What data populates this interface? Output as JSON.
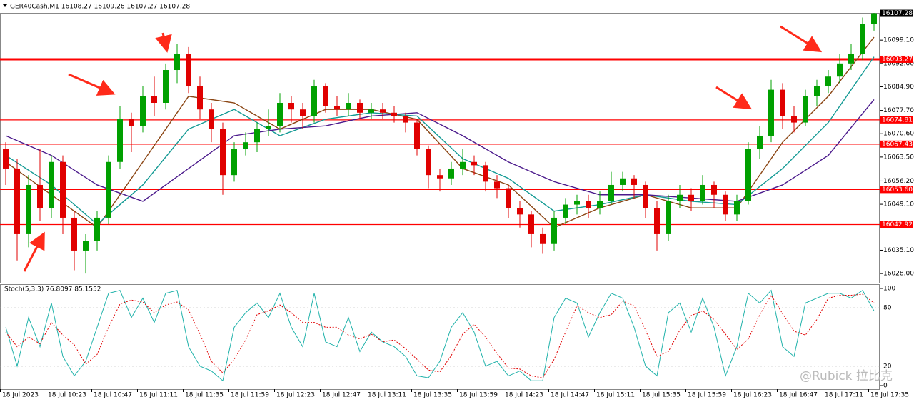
{
  "header": "GER40Cash,M1  16108.27 16109.26 16107.27 16107.28",
  "watermark": "@Rubick 拉比克",
  "chart_data": [
    {
      "type": "candlestick",
      "categories": [
        "18 Jul 2023",
        null,
        null,
        null,
        "18 Jul 10:23",
        null,
        null,
        null,
        "18 Jul 10:47",
        null,
        null,
        null,
        "18 Jul 11:11",
        null,
        null,
        null,
        "18 Jul 11:35",
        null,
        null,
        null,
        "18 Jul 11:59",
        null,
        null,
        null,
        "18 Jul 12:23",
        null,
        null,
        null,
        "18 Jul 12:47",
        null,
        null,
        null,
        "18 Jul 13:11",
        null,
        null,
        null,
        "18 Jul 13:35",
        null,
        null,
        null,
        "18 Jul 13:59",
        null,
        null,
        null,
        "18 Jul 14:23",
        null,
        null,
        null,
        "18 Jul 14:47",
        null,
        null,
        null,
        "18 Jul 15:11",
        null,
        null,
        null,
        "18 Jul 15:35",
        null,
        null,
        null,
        "18 Jul 15:59",
        null,
        null,
        null,
        "18 Jul 16:23",
        null,
        null,
        null,
        "18 Jul 16:47",
        null,
        null,
        null,
        "18 Jul 17:11",
        null,
        null,
        null,
        "18 Jul 17:35"
      ],
      "open": [
        16066,
        16060,
        16040,
        16055,
        16048,
        16062,
        16045,
        16035,
        16038,
        16045,
        16062,
        16075,
        16073,
        16082,
        16080,
        16090,
        16095,
        16085,
        16078,
        16072,
        16058,
        16066,
        16068,
        16072,
        16073,
        16080,
        16078,
        16076,
        16085,
        16079,
        16078,
        16080,
        16077,
        16078,
        16077,
        16076,
        16074,
        16066,
        16058,
        16057,
        16060,
        16062,
        16061,
        16056,
        16054,
        16048,
        16046,
        16040,
        16037,
        16045,
        16049,
        16050,
        16048,
        16050,
        16055,
        16057,
        16055,
        16048,
        16040,
        16050,
        16052,
        16050,
        16055,
        16052,
        16046,
        16050,
        16066,
        16070,
        16084,
        16076,
        16074,
        16082,
        16085,
        16088,
        16092,
        16095,
        16104
      ],
      "high": [
        16068,
        16063,
        16058,
        16066,
        16064,
        16064,
        16047,
        16040,
        16047,
        16064,
        16079,
        16077,
        16085,
        16088,
        16092,
        16098,
        16097,
        16088,
        16080,
        16074,
        16068,
        16071,
        16074,
        16078,
        16083,
        16082,
        16080,
        16087,
        16086,
        16082,
        16083,
        16081,
        16080,
        16080,
        16079,
        16077,
        16075,
        16067,
        16060,
        16062,
        16066,
        16064,
        16062,
        16058,
        16055,
        16050,
        16047,
        16042,
        16047,
        16051,
        16052,
        16052,
        16053,
        16059,
        16059,
        16058,
        16056,
        16050,
        16052,
        16055,
        16054,
        16058,
        16056,
        16053,
        16052,
        16068,
        16073,
        16087,
        16086,
        16079,
        16084,
        16087,
        16090,
        16095,
        16098,
        16106,
        16109.26
      ],
      "low": [
        16055,
        16032,
        16036,
        16044,
        16045,
        16040,
        16029,
        16028,
        16035,
        16043,
        16060,
        16065,
        16071,
        16076,
        16078,
        16086,
        16083,
        16075,
        16068,
        16052,
        16056,
        16064,
        16065,
        16070,
        16071,
        16074,
        16072,
        16074,
        16077,
        16076,
        16076,
        16075,
        16075,
        16075,
        16074,
        16071,
        16064,
        16054,
        16053,
        16055,
        16058,
        16058,
        16053,
        16051,
        16045,
        16042,
        16036,
        16034,
        16035,
        16043,
        16046,
        16045,
        16046,
        16049,
        16053,
        16051,
        16045,
        16035,
        16038,
        16048,
        16047,
        16049,
        16048,
        16044,
        16044,
        16049,
        16063,
        16068,
        16072,
        16071,
        16073,
        16079,
        16083,
        16086,
        16090,
        16093,
        16102
      ],
      "close": [
        16060,
        16040,
        16055,
        16048,
        16062,
        16045,
        16035,
        16038,
        16045,
        16062,
        16075,
        16073,
        16082,
        16080,
        16090,
        16095,
        16085,
        16078,
        16072,
        16058,
        16066,
        16068,
        16072,
        16073,
        16080,
        16078,
        16076,
        16085,
        16079,
        16078,
        16080,
        16077,
        16078,
        16077,
        16076,
        16074,
        16066,
        16058,
        16057,
        16060,
        16062,
        16061,
        16056,
        16054,
        16048,
        16046,
        16040,
        16037,
        16045,
        16049,
        16050,
        16048,
        16050,
        16055,
        16057,
        16055,
        16048,
        16040,
        16050,
        16052,
        16050,
        16055,
        16052,
        16046,
        16050,
        16066,
        16070,
        16084,
        16076,
        16074,
        16082,
        16085,
        16088,
        16092,
        16095,
        16104,
        16107.28
      ],
      "up_color": "#00a000",
      "down_color": "#e00000",
      "ylim": [
        16025.2,
        16107.4
      ],
      "yticks": [
        {
          "value": 16028,
          "label": "16028.00"
        },
        {
          "value": 16035.1,
          "label": "16035.10"
        },
        {
          "value": 16049.1,
          "label": "16049.10"
        },
        {
          "value": 16056.2,
          "label": "16056.20"
        },
        {
          "value": 16063.5,
          "label": "16063.50"
        },
        {
          "value": 16070.6,
          "label": "16070.60"
        },
        {
          "value": 16077.7,
          "label": "16077.70"
        },
        {
          "value": 16084.9,
          "label": "16084.90"
        },
        {
          "value": 16092,
          "label": "16092.00"
        },
        {
          "value": 16099.1,
          "label": "16099.10"
        }
      ],
      "levels": [
        {
          "value": 16093.27,
          "label": "16093.27"
        },
        {
          "value": 16074.81,
          "label": "16074.81"
        },
        {
          "value": 16067.43,
          "label": "16067.43"
        },
        {
          "value": 16053.6,
          "label": "16053.60"
        },
        {
          "value": 16042.92,
          "label": "16042.92"
        }
      ],
      "level_color": "#ff0000",
      "moving_averages": [
        {
          "color": "#8b4513",
          "x": [
            0,
            4,
            8,
            12,
            16,
            20,
            24,
            28,
            32,
            36,
            40,
            44,
            48,
            52,
            56,
            60,
            64,
            68,
            72,
            76
          ],
          "values": [
            16062,
            16052,
            16042,
            16062,
            16082,
            16080,
            16072,
            16078,
            16078,
            16075,
            16060,
            16055,
            16042,
            16048,
            16052,
            16048,
            16048,
            16068,
            16082,
            16100
          ]
        },
        {
          "color": "#139a94",
          "x": [
            0,
            4,
            8,
            12,
            16,
            20,
            24,
            28,
            32,
            36,
            40,
            44,
            48,
            52,
            56,
            60,
            64,
            68,
            72,
            76
          ],
          "values": [
            16064,
            16055,
            16043,
            16055,
            16072,
            16078,
            16070,
            16075,
            16077,
            16076,
            16063,
            16057,
            16047,
            16049,
            16052,
            16050,
            16049,
            16060,
            16074,
            16094
          ]
        },
        {
          "color": "#4b1a8c",
          "x": [
            0,
            4,
            8,
            12,
            16,
            20,
            24,
            28,
            32,
            36,
            40,
            44,
            48,
            52,
            56,
            60,
            64,
            68,
            72,
            76
          ],
          "values": [
            16070,
            16064,
            16055,
            16050,
            16060,
            16070,
            16072,
            16073,
            16076,
            16077,
            16070,
            16062,
            16056,
            16052,
            16052,
            16051,
            16050,
            16055,
            16064,
            16081
          ]
        }
      ]
    },
    {
      "type": "line",
      "title": "Stoch(5,3,3) 76.8097 85.1552",
      "ylim": [
        0,
        100
      ],
      "yticks": [
        0,
        20,
        80,
        100
      ],
      "series": [
        {
          "color": "#20b2aa",
          "values": [
            60,
            20,
            70,
            40,
            85,
            30,
            10,
            25,
            60,
            95,
            98,
            70,
            90,
            65,
            95,
            98,
            40,
            20,
            15,
            5,
            60,
            75,
            85,
            70,
            95,
            60,
            40,
            95,
            45,
            40,
            70,
            35,
            55,
            45,
            40,
            30,
            10,
            8,
            25,
            60,
            75,
            55,
            20,
            25,
            10,
            15,
            5,
            5,
            70,
            90,
            85,
            50,
            75,
            95,
            90,
            60,
            20,
            10,
            75,
            85,
            55,
            90,
            60,
            10,
            40,
            95,
            85,
            98,
            40,
            30,
            85,
            90,
            95,
            95,
            90,
            98,
            76.8097
          ]
        },
        {
          "color": "#e00000",
          "dashed": true,
          "values": [
            55,
            40,
            50,
            43,
            65,
            52,
            42,
            22,
            32,
            60,
            84,
            88,
            86,
            75,
            83,
            86,
            78,
            53,
            25,
            13,
            27,
            47,
            73,
            77,
            83,
            75,
            65,
            65,
            60,
            60,
            52,
            48,
            53,
            45,
            47,
            38,
            27,
            16,
            14,
            31,
            53,
            63,
            50,
            33,
            18,
            17,
            10,
            8,
            27,
            55,
            82,
            75,
            70,
            73,
            87,
            82,
            57,
            30,
            35,
            57,
            72,
            77,
            68,
            53,
            37,
            48,
            73,
            93,
            74,
            56,
            52,
            68,
            90,
            93,
            93,
            94,
            85.1552
          ]
        }
      ]
    }
  ]
}
